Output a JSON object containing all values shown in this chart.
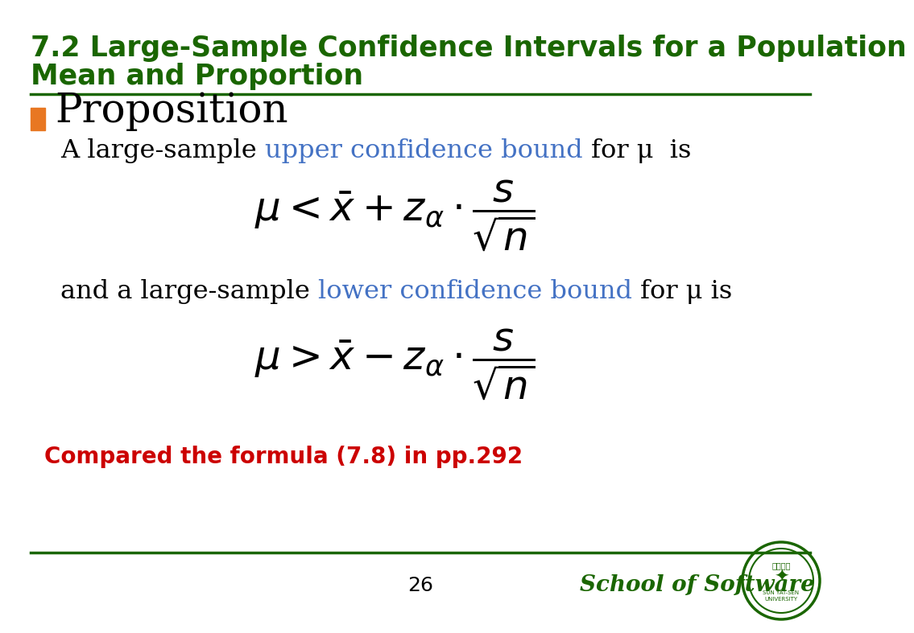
{
  "title_line1": "7.2 Large-Sample Confidence Intervals for a Population",
  "title_line2": "Mean and Proportion",
  "title_color": "#1a6600",
  "title_fontsize": 25,
  "bullet_color": "#e87722",
  "proposition_text": "Proposition",
  "proposition_fontsize": 36,
  "body_fontsize": 23,
  "formula_fontsize": 36,
  "text_color": "#000000",
  "blue_color": "#4472c4",
  "formula1": "$\\mu < \\bar{x} + z_{\\alpha} \\cdot \\dfrac{s}{\\sqrt{n}}$",
  "formula2": "$\\mu > \\bar{x} - z_{\\alpha} \\cdot \\dfrac{s}{\\sqrt{n}}$",
  "note_text": "Compared the formula (7.8) in pp.292",
  "note_color": "#cc0000",
  "note_fontsize": 20,
  "page_number": "26",
  "school_text": "School of Software",
  "school_color": "#1a6600",
  "footer_fontsize": 18,
  "bg_color": "#ffffff",
  "separator_color": "#1a6600",
  "separator_linewidth": 2.5,
  "line1_p1": "A large-sample ",
  "line1_p2": "upper confidence bound",
  "line1_p3": " for μ  is",
  "line2_p1": "and a large-sample ",
  "line2_p2": "lower confidence bound",
  "line2_p3": " for μ is"
}
